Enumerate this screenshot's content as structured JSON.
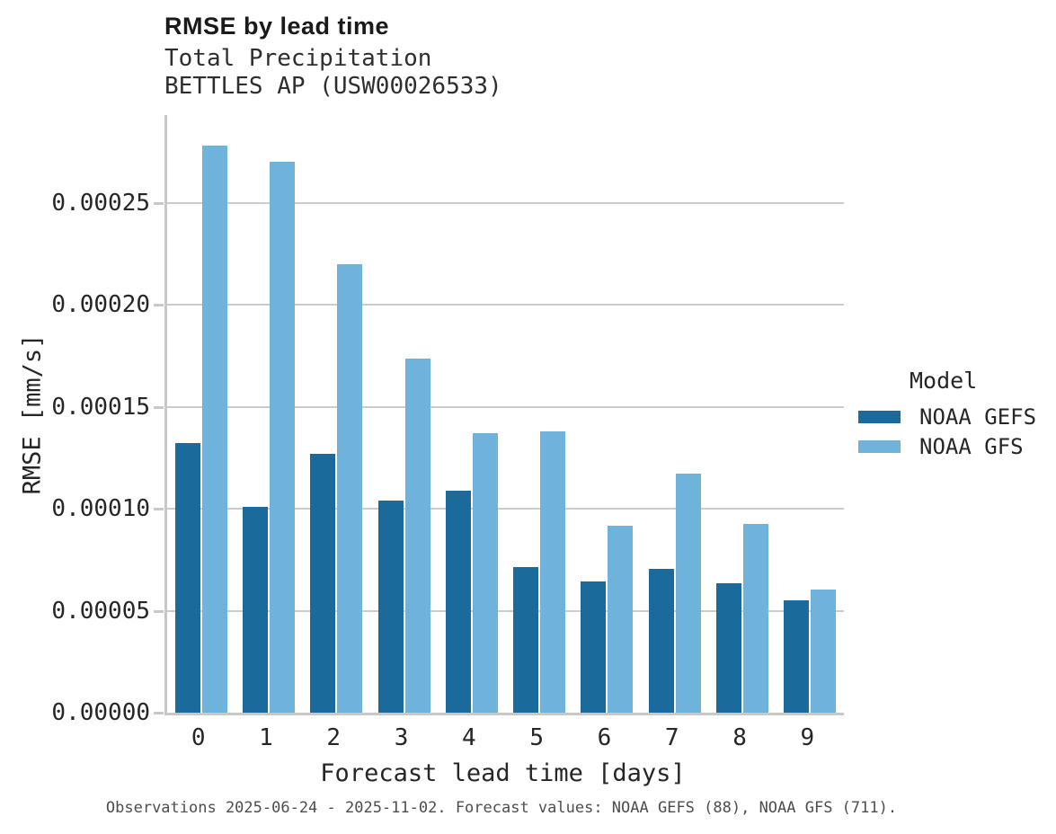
{
  "header": {
    "title": "RMSE by lead time",
    "subtitle_line1": "Total Precipitation",
    "subtitle_line2": "BETTLES AP (USW00026533)"
  },
  "chart_data": {
    "type": "bar",
    "title": "RMSE by lead time",
    "subtitle": [
      "Total Precipitation",
      "BETTLES AP (USW00026533)"
    ],
    "xlabel": "Forecast lead time [days]",
    "ylabel": "RMSE [mm/s]",
    "categories": [
      "0",
      "1",
      "2",
      "3",
      "4",
      "5",
      "6",
      "7",
      "8",
      "9"
    ],
    "series": [
      {
        "name": "NOAA GEFS",
        "color": "#1a6b9c",
        "values": [
          0.000132,
          0.000101,
          0.000127,
          0.000104,
          0.000109,
          7.15e-05,
          6.45e-05,
          7.05e-05,
          6.35e-05,
          5.5e-05
        ]
      },
      {
        "name": "NOAA GFS",
        "color": "#6fb2db",
        "values": [
          0.000278,
          0.00027,
          0.00022,
          0.0001735,
          0.000137,
          0.000138,
          9.15e-05,
          0.000117,
          9.25e-05,
          6.05e-05
        ]
      }
    ],
    "ylim": [
      0,
      0.000293
    ],
    "yticks": {
      "values": [
        0,
        5e-05,
        0.0001,
        0.00015,
        0.0002,
        0.00025
      ],
      "labels": [
        "0.00000",
        "0.00005",
        "0.00010",
        "0.00015",
        "0.00020",
        "0.00025"
      ]
    },
    "grid": "horizontal gridlines on",
    "legend_title": "Model",
    "legend_position": "center right, outside plot"
  },
  "caption": "Observations 2025-06-24 - 2025-11-02. Forecast values: NOAA GEFS (88), NOAA GFS (711).",
  "colors": {
    "bar_dark": "#1a6b9c",
    "bar_light": "#6fb2db",
    "gridline": "#cccccc",
    "spine": "#c8c8c8",
    "title_text": "#1a1a1a",
    "body_text": "#262626",
    "caption_text": "#4d4d4d",
    "background": "#ffffff"
  }
}
